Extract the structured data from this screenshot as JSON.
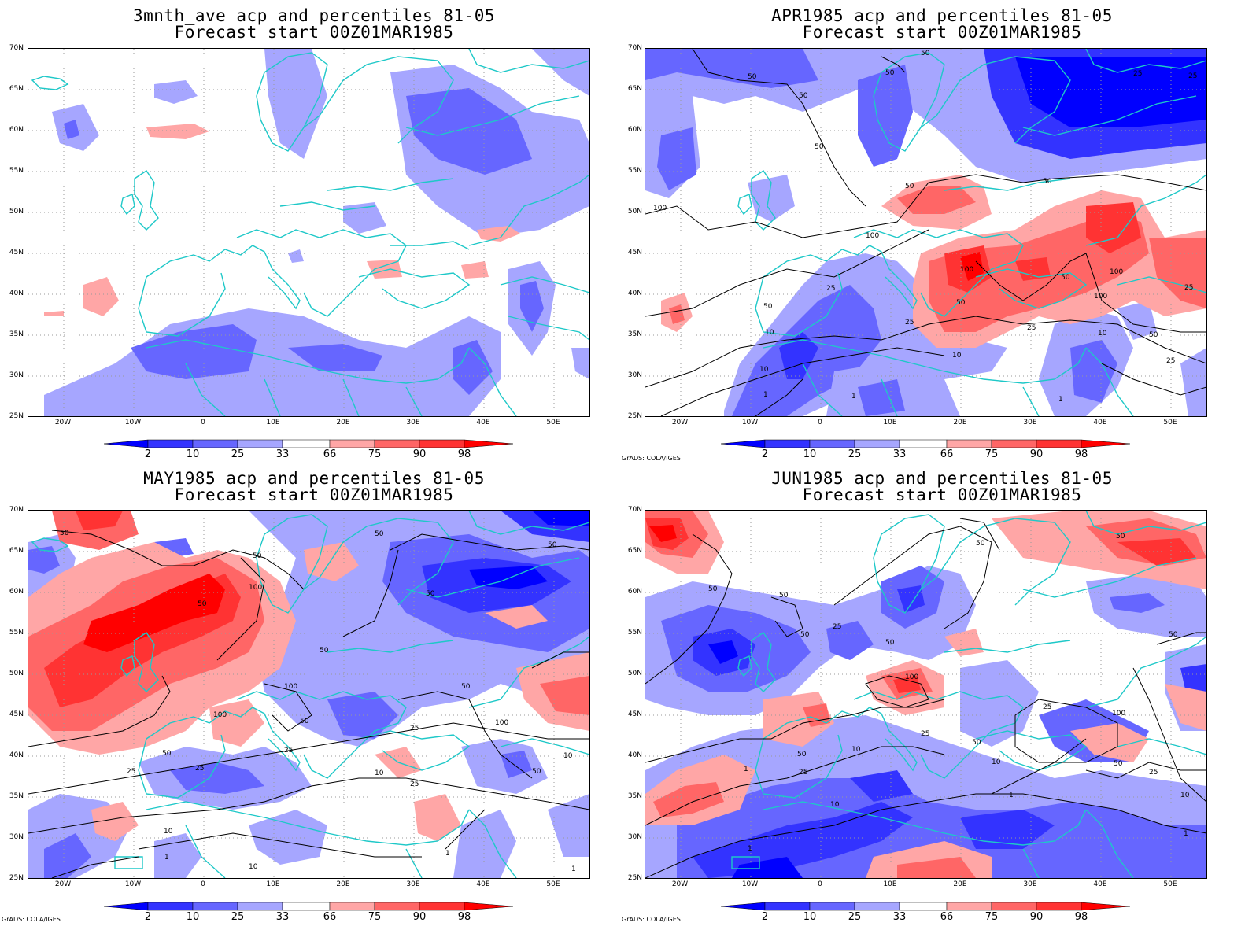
{
  "panels": [
    {
      "title_line1": "3mnth_ave acp and percentiles 81-05",
      "title_line2": "Forecast start 00Z01MAR1985",
      "credit": ""
    },
    {
      "title_line1": "APR1985 acp and percentiles 81-05",
      "title_line2": "Forecast start 00Z01MAR1985",
      "credit": "GrADS: COLA/IGES"
    },
    {
      "title_line1": "MAY1985 acp and percentiles 81-05",
      "title_line2": "Forecast start 00Z01MAR1985",
      "credit": "GrADS: COLA/IGES"
    },
    {
      "title_line1": "JUN1985 acp and percentiles 81-05",
      "title_line2": "Forecast start 00Z01MAR1985",
      "credit": "GrADS: COLA/IGES"
    }
  ],
  "axes": {
    "lat_labels": [
      "70N",
      "65N",
      "60N",
      "55N",
      "50N",
      "45N",
      "40N",
      "35N",
      "30N",
      "25N"
    ],
    "lon_labels": [
      "20W",
      "10W",
      "0",
      "10E",
      "20E",
      "30E",
      "40E",
      "50E"
    ]
  },
  "colorbar": {
    "labels": [
      "2",
      "10",
      "25",
      "33",
      "66",
      "75",
      "90",
      "98"
    ],
    "colors": [
      "#0000ff",
      "#3333ff",
      "#6666ff",
      "#a6a6ff",
      "#ffffff",
      "#ffa6a6",
      "#ff6666",
      "#ff3333",
      "#ff0000"
    ]
  },
  "contour_labels": {
    "apr": [
      "50",
      "50",
      "50",
      "25",
      "25",
      "50",
      "50",
      "100",
      "50",
      "50",
      "100",
      "100",
      "50",
      "25",
      "10",
      "10",
      "1",
      "1",
      "50",
      "25",
      "10",
      "100",
      "25",
      "100",
      "50",
      "25",
      "10",
      "25",
      "50",
      "1",
      "100"
    ],
    "may": [
      "50",
      "50",
      "100",
      "50",
      "50",
      "50",
      "50",
      "100",
      "50",
      "100",
      "50",
      "25",
      "10",
      "1",
      "10",
      "25",
      "10",
      "25",
      "50",
      "100",
      "25",
      "50",
      "25",
      "10",
      "1",
      "100",
      "1",
      "50"
    ],
    "jun": [
      "50",
      "50",
      "50",
      "50",
      "25",
      "50",
      "50",
      "100",
      "25",
      "25",
      "10",
      "10",
      "1",
      "50",
      "100",
      "50",
      "25",
      "50",
      "10",
      "25",
      "1",
      "1",
      "10",
      "1",
      "50"
    ]
  },
  "colors": {
    "coast": "#1ec8c8",
    "grid": "#999999",
    "contour": "#000000"
  }
}
